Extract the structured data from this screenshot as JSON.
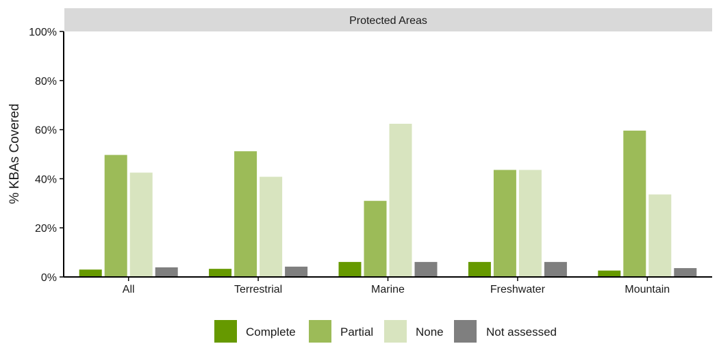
{
  "chart_data": {
    "type": "bar",
    "facet_title": "Protected Areas",
    "ylabel": "% KBAs Covered",
    "xlabel": "",
    "ylim": [
      0,
      100
    ],
    "y_ticks": [
      "0%",
      "20%",
      "40%",
      "60%",
      "80%",
      "100%"
    ],
    "y_tick_values": [
      0,
      20,
      40,
      60,
      80,
      100
    ],
    "categories": [
      "All",
      "Terrestrial",
      "Marine",
      "Freshwater",
      "Mountain"
    ],
    "series": [
      {
        "name": "Complete",
        "color": "#669900",
        "values": [
          3.0,
          3.3,
          6.1,
          6.1,
          2.6
        ]
      },
      {
        "name": "Partial",
        "color": "#9cbb58",
        "values": [
          49.7,
          51.2,
          31.0,
          43.6,
          59.6
        ]
      },
      {
        "name": "None",
        "color": "#d8e4bf",
        "values": [
          42.5,
          40.8,
          62.4,
          43.6,
          33.6
        ]
      },
      {
        "name": "Not assessed",
        "color": "#7f7f7f",
        "values": [
          3.9,
          4.2,
          6.1,
          6.1,
          3.6
        ]
      }
    ],
    "legend_position": "bottom",
    "grid": false
  }
}
